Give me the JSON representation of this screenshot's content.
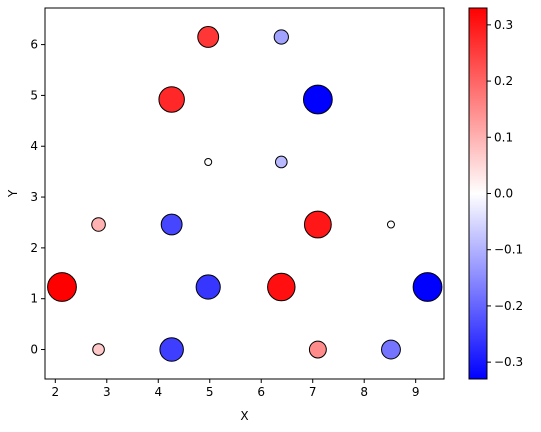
{
  "chart_data": {
    "type": "scatter",
    "title": "",
    "xlabel": "X",
    "ylabel": "Y",
    "xlim": [
      1.8,
      9.55
    ],
    "ylim": [
      -0.58,
      6.72
    ],
    "xticks": [
      2,
      3,
      4,
      5,
      6,
      7,
      8,
      9
    ],
    "yticks": [
      0,
      1,
      2,
      3,
      4,
      5,
      6
    ],
    "grid": false,
    "legend": "none",
    "points": [
      {
        "x": 2.13,
        "y": 1.23,
        "value": 0.33,
        "magnitude": 0.33
      },
      {
        "x": 2.84,
        "y": 0.0,
        "value": 0.07,
        "magnitude": 0.07
      },
      {
        "x": 2.84,
        "y": 2.46,
        "value": 0.1,
        "magnitude": 0.1
      },
      {
        "x": 4.26,
        "y": 0.0,
        "value": -0.25,
        "magnitude": 0.25
      },
      {
        "x": 4.26,
        "y": 2.46,
        "value": -0.24,
        "magnitude": 0.21
      },
      {
        "x": 4.26,
        "y": 4.92,
        "value": 0.28,
        "magnitude": 0.28
      },
      {
        "x": 4.97,
        "y": 1.23,
        "value": -0.26,
        "magnitude": 0.26
      },
      {
        "x": 4.97,
        "y": 3.69,
        "value": 0.0,
        "magnitude": 0.0
      },
      {
        "x": 4.97,
        "y": 6.15,
        "value": 0.26,
        "magnitude": 0.21
      },
      {
        "x": 6.39,
        "y": 1.23,
        "value": 0.31,
        "magnitude": 0.31
      },
      {
        "x": 6.39,
        "y": 3.69,
        "value": -0.09,
        "magnitude": 0.07
      },
      {
        "x": 6.39,
        "y": 6.15,
        "value": -0.12,
        "magnitude": 0.11
      },
      {
        "x": 7.1,
        "y": 0.0,
        "value": 0.15,
        "magnitude": 0.15
      },
      {
        "x": 7.1,
        "y": 2.46,
        "value": 0.3,
        "magnitude": 0.3
      },
      {
        "x": 7.1,
        "y": 4.92,
        "value": -0.33,
        "magnitude": 0.33
      },
      {
        "x": 8.52,
        "y": 0.0,
        "value": -0.18,
        "magnitude": 0.18
      },
      {
        "x": 8.52,
        "y": 2.46,
        "value": 0.0,
        "magnitude": 0.0
      },
      {
        "x": 9.23,
        "y": 1.23,
        "value": -0.33,
        "magnitude": 0.33
      }
    ],
    "colorbar": {
      "colormap": "bwr",
      "min": -0.33,
      "max": 0.33,
      "min_color": "#0000ff",
      "mid_color": "#ffffff",
      "max_color": "#ff0000",
      "ticks": [
        -0.3,
        -0.2,
        -0.1,
        0.0,
        0.1,
        0.2,
        0.3
      ],
      "tick_labels": [
        "−0.3",
        "−0.2",
        "−0.1",
        "0.0",
        "0.1",
        "0.2",
        "0.3"
      ]
    }
  }
}
